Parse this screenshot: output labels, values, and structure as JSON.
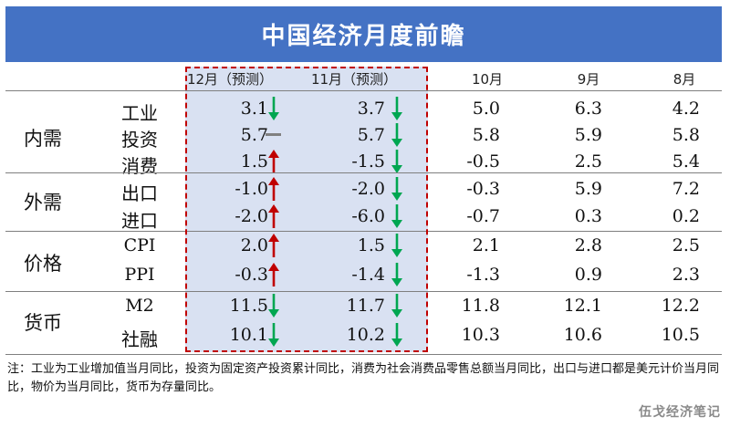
{
  "title": "中国经济月度前瞻",
  "columns": [
    "12月（预测）",
    "11月（预测）",
    "10月",
    "9月",
    "8月"
  ],
  "groups": [
    {
      "name": "内需",
      "rows": [
        {
          "label": "工业",
          "v12": "3.1",
          "a12": "down",
          "v11": "3.7",
          "a11": "down",
          "v10": "5.0",
          "v9": "6.3",
          "v8": "4.2"
        },
        {
          "label": "投资",
          "v12": "5.7",
          "a12": "flat",
          "v11": "5.7",
          "a11": "down",
          "v10": "5.8",
          "v9": "5.9",
          "v8": "5.8"
        },
        {
          "label": "消费",
          "v12": "1.5",
          "a12": "up",
          "v11": "-1.5",
          "a11": "down",
          "v10": "-0.5",
          "v9": "2.5",
          "v8": "5.4"
        }
      ]
    },
    {
      "name": "外需",
      "rows": [
        {
          "label": "出口",
          "v12": "-1.0",
          "a12": "up",
          "v11": "-2.0",
          "a11": "down",
          "v10": "-0.3",
          "v9": "5.9",
          "v8": "7.2"
        },
        {
          "label": "进口",
          "v12": "-2.0",
          "a12": "up",
          "v11": "-6.0",
          "a11": "down",
          "v10": "-0.7",
          "v9": "0.3",
          "v8": "0.2"
        }
      ]
    },
    {
      "name": "价格",
      "rows": [
        {
          "label": "CPI",
          "v12": "2.0",
          "a12": "up",
          "v11": "1.5",
          "a11": "down",
          "v10": "2.1",
          "v9": "2.8",
          "v8": "2.5"
        },
        {
          "label": "PPI",
          "v12": "-0.3",
          "a12": "up",
          "v11": "-1.4",
          "a11": "down",
          "v10": "-1.3",
          "v9": "0.9",
          "v8": "2.3"
        }
      ]
    },
    {
      "name": "货币",
      "rows": [
        {
          "label": "M2",
          "v12": "11.5",
          "a12": "down",
          "v11": "11.7",
          "a11": "down",
          "v10": "11.8",
          "v9": "12.1",
          "v8": "12.2"
        },
        {
          "label": "社融",
          "v12": "10.1",
          "a12": "down",
          "v11": "10.2",
          "a11": "down",
          "v10": "10.3",
          "v9": "10.6",
          "v8": "10.5"
        }
      ]
    }
  ],
  "note": "注：工业为工业增加值当月同比，投资为固定资产投资累计同比，消费为社会消费品零售总额当月同比，出口与进口都是美元计价当月同比，物价为当月同比，货币为存量同比。",
  "brand": "伍戈经济笔记",
  "colors": {
    "header": "#4472c4",
    "forecast_band": "#d9e1f2",
    "up": "#c00000",
    "down": "#00a651",
    "flat": "#808080",
    "dash_border": "#c00000"
  }
}
